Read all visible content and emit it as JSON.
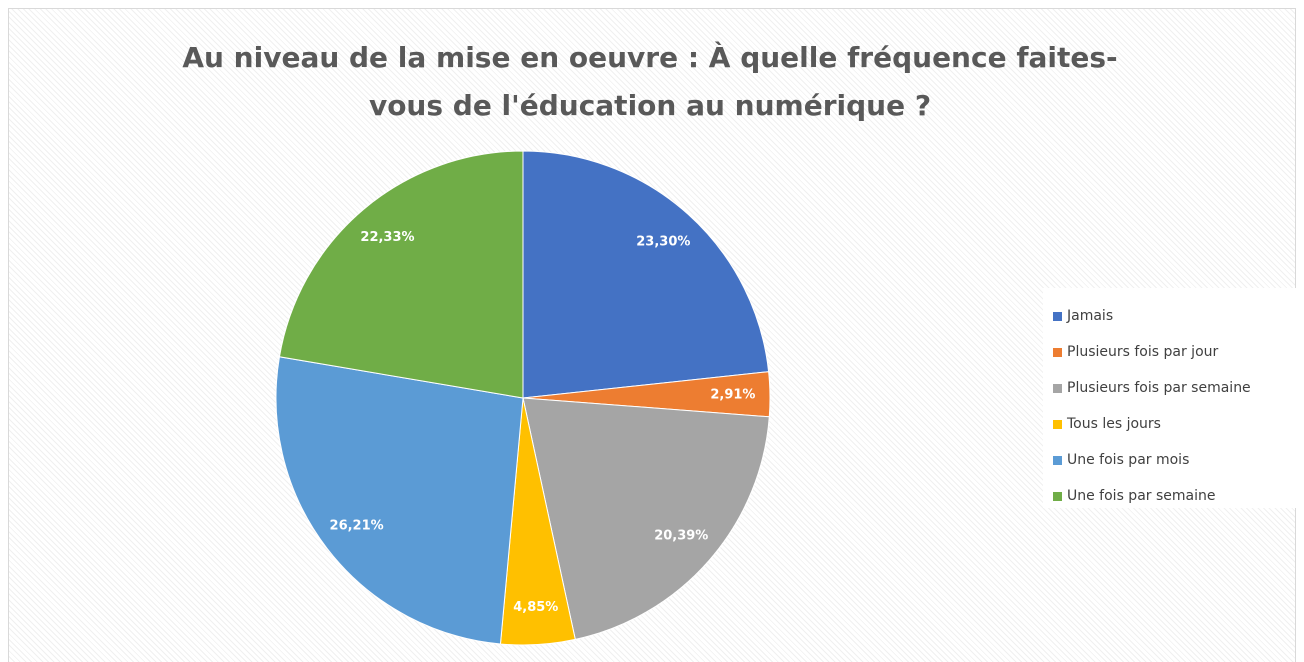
{
  "chart_data": {
    "type": "pie",
    "title": "Au niveau de la mise en oeuvre : À quelle fréquence faites-vous de l'éducation au numérique ?",
    "categories": [
      "Jamais",
      "Plusieurs fois par jour",
      "Plusieurs fois par semaine",
      "Tous les jours",
      "Une fois par mois",
      "Une fois par semaine"
    ],
    "values": [
      23.3,
      2.91,
      20.39,
      4.85,
      26.21,
      22.33
    ],
    "value_labels": [
      "23,30%",
      "2,91%",
      "20,39%",
      "4,85%",
      "26,21%",
      "22,33%"
    ],
    "colors": [
      "#4472c4",
      "#ed7d31",
      "#a5a5a5",
      "#ffc000",
      "#5b9bd5",
      "#70ad47"
    ],
    "legend": "right"
  }
}
